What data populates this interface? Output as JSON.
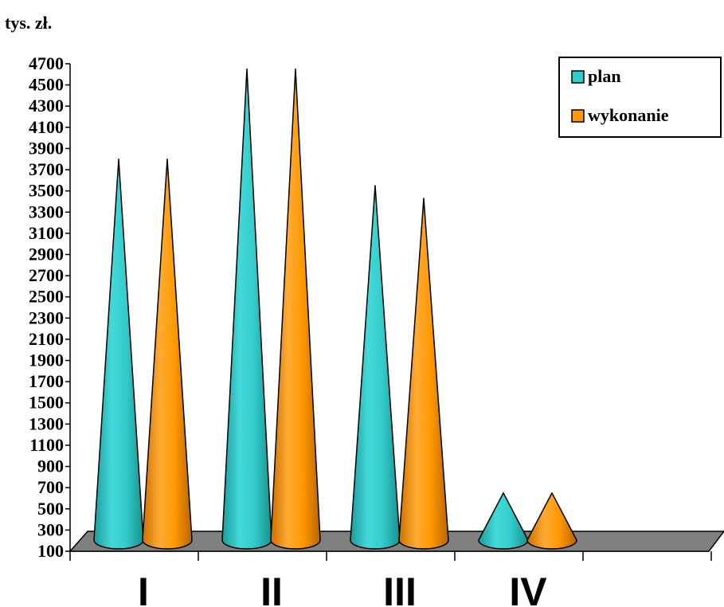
{
  "chart_data": {
    "type": "bar",
    "unit_label": "tys. zł.",
    "categories": [
      "I",
      "II",
      "III",
      "IV"
    ],
    "series": [
      {
        "name": "plan",
        "values": [
          3800,
          4650,
          3550,
          650
        ]
      },
      {
        "name": "wykonanie",
        "values": [
          3800,
          4650,
          3430,
          650
        ]
      }
    ],
    "yticks": [
      100,
      300,
      500,
      700,
      900,
      1100,
      1300,
      1500,
      1700,
      1900,
      2100,
      2300,
      2500,
      2700,
      2900,
      3100,
      3300,
      3500,
      3700,
      3900,
      4100,
      4300,
      4500,
      4700
    ],
    "ylim": [
      100,
      4700
    ],
    "legend_position": "top-right",
    "mark_shape": "cone",
    "colors": {
      "plan": "#33cccc",
      "wykonanie": "#ff9900",
      "floor": "#808080"
    }
  }
}
